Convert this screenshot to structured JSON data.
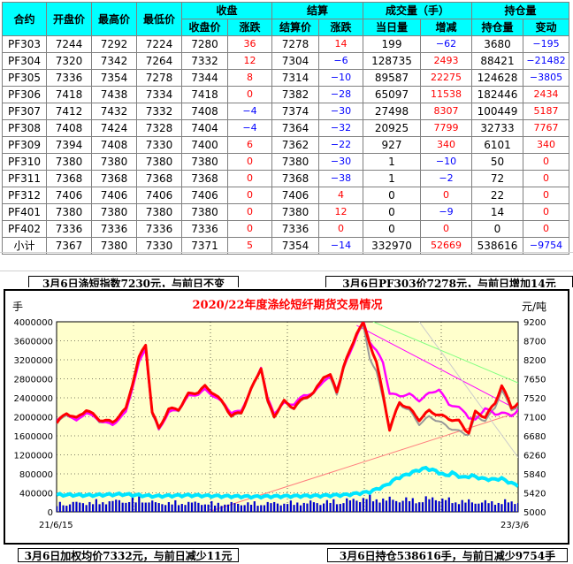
{
  "table": {
    "header_top": [
      "合约",
      "开盘价",
      "最高价",
      "最低价",
      "收盘",
      "结算",
      "成交量（手）",
      "持仓量"
    ],
    "header_sub": [
      "收盘价",
      "涨跌",
      "结算价",
      "涨跌",
      "当日量",
      "增减",
      "持仓量",
      "变动"
    ],
    "rows": [
      {
        "c": "PF303",
        "o": "7244",
        "h": "7292",
        "l": "7224",
        "cl": "7280",
        "cld": "36",
        "s": "7278",
        "sd": "14",
        "v": "199",
        "vd": "−62",
        "p": "3680",
        "pd": "−195"
      },
      {
        "c": "PF304",
        "o": "7320",
        "h": "7342",
        "l": "7264",
        "cl": "7332",
        "cld": "12",
        "s": "7304",
        "sd": "−6",
        "v": "128735",
        "vd": "2493",
        "p": "88421",
        "pd": "−21482"
      },
      {
        "c": "PF305",
        "o": "7336",
        "h": "7354",
        "l": "7278",
        "cl": "7344",
        "cld": "8",
        "s": "7314",
        "sd": "−10",
        "v": "89587",
        "vd": "22275",
        "p": "124628",
        "pd": "−3805"
      },
      {
        "c": "PF306",
        "o": "7418",
        "h": "7438",
        "l": "7334",
        "cl": "7418",
        "cld": "0",
        "s": "7382",
        "sd": "−28",
        "v": "65097",
        "vd": "11538",
        "p": "182446",
        "pd": "2434"
      },
      {
        "c": "PF307",
        "o": "7412",
        "h": "7432",
        "l": "7332",
        "cl": "7408",
        "cld": "−4",
        "s": "7374",
        "sd": "−30",
        "v": "27498",
        "vd": "8307",
        "p": "100449",
        "pd": "5187"
      },
      {
        "c": "PF308",
        "o": "7408",
        "h": "7424",
        "l": "7328",
        "cl": "7404",
        "cld": "−4",
        "s": "7364",
        "sd": "−32",
        "v": "20925",
        "vd": "7799",
        "p": "32733",
        "pd": "7767"
      },
      {
        "c": "PF309",
        "o": "7394",
        "h": "7408",
        "l": "7330",
        "cl": "7400",
        "cld": "6",
        "s": "7362",
        "sd": "−22",
        "v": "927",
        "vd": "340",
        "p": "6101",
        "pd": "340"
      },
      {
        "c": "PF310",
        "o": "7380",
        "h": "7380",
        "l": "7380",
        "cl": "7380",
        "cld": "0",
        "s": "7380",
        "sd": "−30",
        "v": "1",
        "vd": "−10",
        "p": "50",
        "pd": "0"
      },
      {
        "c": "PF311",
        "o": "7368",
        "h": "7368",
        "l": "7368",
        "cl": "7368",
        "cld": "0",
        "s": "7368",
        "sd": "−38",
        "v": "1",
        "vd": "−2",
        "p": "72",
        "pd": "0"
      },
      {
        "c": "PF312",
        "o": "7406",
        "h": "7406",
        "l": "7406",
        "cl": "7406",
        "cld": "0",
        "s": "7406",
        "sd": "4",
        "v": "0",
        "vd": "0",
        "p": "22",
        "pd": "0"
      },
      {
        "c": "PF401",
        "o": "7380",
        "h": "7380",
        "l": "7380",
        "cl": "7380",
        "cld": "0",
        "s": "7380",
        "sd": "12",
        "v": "0",
        "vd": "−9",
        "p": "14",
        "pd": "0"
      },
      {
        "c": "PF402",
        "o": "7336",
        "h": "7336",
        "l": "7336",
        "cl": "7336",
        "cld": "0",
        "s": "7336",
        "sd": "0",
        "v": "0",
        "vd": "0",
        "p": "0",
        "pd": "0"
      },
      {
        "c": "小计",
        "o": "7367",
        "h": "7380",
        "l": "7330",
        "cl": "7371",
        "cld": "5",
        "s": "7354",
        "sd": "−14",
        "v": "332970",
        "vd": "52669",
        "p": "538616",
        "pd": "−9754"
      }
    ]
  },
  "captions": {
    "top_left": "3月6日涤短指数7230元，与前日不变",
    "top_right": "3月6日PF303价7278元，与前日增加14元",
    "bottom_left": "3月6日加权均价7332元，与前日减少11元",
    "bottom_right": "3月6日持仓538616手，与前日减少9754手"
  },
  "colors": {
    "header_bg": "#00ffff",
    "up": "#ff0000",
    "down": "#0000ff",
    "chart_bg": "#ffffcc",
    "frame": "#000000",
    "title": "#ff0000",
    "price_line": "#ff0000",
    "magenta_line": "#ff00ff",
    "gray_line": "#999999",
    "volume_bar": "#0000cc",
    "oi_line": "#00e5ff"
  },
  "chart_data": {
    "type": "line",
    "title": "2020/22年度涤纶短纤期货交易情况",
    "ylabel_left": "手",
    "ylabel_right": "元/吨",
    "x_start_label": "21/6/15",
    "x_end_label": "23/3/6",
    "y_left_ticks": [
      "4000000",
      "3600000",
      "3200000",
      "2800000",
      "2400000",
      "2000000",
      "1600000",
      "1200000",
      "800000",
      "400000",
      "0"
    ],
    "y_left_lim": [
      0,
      4000000
    ],
    "y_right_ticks": [
      "9200",
      "8700",
      "8200",
      "7650",
      "7520",
      "7100",
      "6680",
      "6260",
      "5840",
      "5420",
      "5000"
    ],
    "y_right_lim": [
      5000,
      9200
    ],
    "n": 140,
    "series": [
      {
        "name": "",
        "role": "price",
        "axis": "right",
        "anchors": [
          [
            0,
            6960
          ],
          [
            3,
            7190
          ],
          [
            6,
            7060
          ],
          [
            9,
            7260
          ],
          [
            13,
            7040
          ],
          [
            17,
            6980
          ],
          [
            21,
            7270
          ],
          [
            25,
            8400
          ],
          [
            27,
            8700
          ],
          [
            29,
            7200
          ],
          [
            31,
            6840
          ],
          [
            34,
            7270
          ],
          [
            37,
            7270
          ],
          [
            40,
            7600
          ],
          [
            43,
            7650
          ],
          [
            45,
            7770
          ],
          [
            48,
            7600
          ],
          [
            51,
            7360
          ],
          [
            53,
            7120
          ],
          [
            56,
            7200
          ],
          [
            59,
            7700
          ],
          [
            62,
            8190
          ],
          [
            64,
            7440
          ],
          [
            66,
            7120
          ],
          [
            69,
            7440
          ],
          [
            72,
            7300
          ],
          [
            75,
            7520
          ],
          [
            78,
            7620
          ],
          [
            81,
            8000
          ],
          [
            83,
            8010
          ],
          [
            85,
            7660
          ],
          [
            87,
            8200
          ],
          [
            89,
            8560
          ],
          [
            91,
            8960
          ],
          [
            93,
            9160
          ],
          [
            95,
            8720
          ],
          [
            97,
            8300
          ],
          [
            99,
            7600
          ],
          [
            101,
            6820
          ],
          [
            104,
            7420
          ],
          [
            107,
            7280
          ],
          [
            110,
            7040
          ],
          [
            113,
            7230
          ],
          [
            116,
            7140
          ],
          [
            119,
            7060
          ],
          [
            122,
            7000
          ],
          [
            124,
            6820
          ],
          [
            125,
            6760
          ],
          [
            127,
            7200
          ],
          [
            130,
            7100
          ],
          [
            133,
            7400
          ],
          [
            135,
            7800
          ],
          [
            138,
            7300
          ],
          [
            140,
            7410
          ]
        ]
      },
      {
        "name": "",
        "role": "magenta",
        "axis": "right",
        "anchors": [
          [
            0,
            7000
          ],
          [
            3,
            7180
          ],
          [
            6,
            7000
          ],
          [
            9,
            7200
          ],
          [
            13,
            7020
          ],
          [
            17,
            6920
          ],
          [
            21,
            7200
          ],
          [
            25,
            8300
          ],
          [
            27,
            8600
          ],
          [
            29,
            7200
          ],
          [
            31,
            6820
          ],
          [
            34,
            7200
          ],
          [
            37,
            7260
          ],
          [
            40,
            7560
          ],
          [
            43,
            7600
          ],
          [
            45,
            7700
          ],
          [
            48,
            7540
          ],
          [
            51,
            7380
          ],
          [
            53,
            7180
          ],
          [
            56,
            7240
          ],
          [
            59,
            7700
          ],
          [
            62,
            8200
          ],
          [
            64,
            7500
          ],
          [
            66,
            7180
          ],
          [
            69,
            7400
          ],
          [
            72,
            7380
          ],
          [
            75,
            7580
          ],
          [
            78,
            7620
          ],
          [
            81,
            7900
          ],
          [
            83,
            7980
          ],
          [
            85,
            7700
          ],
          [
            87,
            8180
          ],
          [
            89,
            8500
          ],
          [
            91,
            8900
          ],
          [
            93,
            9200
          ],
          [
            95,
            8760
          ],
          [
            97,
            8560
          ],
          [
            99,
            8300
          ],
          [
            101,
            7620
          ],
          [
            104,
            7560
          ],
          [
            107,
            7600
          ],
          [
            110,
            7460
          ],
          [
            113,
            7620
          ],
          [
            116,
            7700
          ],
          [
            119,
            7380
          ],
          [
            122,
            7300
          ],
          [
            124,
            7200
          ],
          [
            125,
            7080
          ],
          [
            127,
            7020
          ],
          [
            130,
            7300
          ],
          [
            133,
            7150
          ],
          [
            135,
            7200
          ],
          [
            138,
            7120
          ],
          [
            140,
            7260
          ]
        ]
      },
      {
        "name": "",
        "role": "gray",
        "axis": "right",
        "anchors": [
          [
            0,
            6940
          ],
          [
            3,
            7150
          ],
          [
            6,
            7040
          ],
          [
            9,
            7230
          ],
          [
            13,
            7000
          ],
          [
            17,
            6960
          ],
          [
            21,
            7240
          ],
          [
            25,
            8350
          ],
          [
            27,
            8650
          ],
          [
            29,
            7160
          ],
          [
            31,
            6800
          ],
          [
            34,
            7240
          ],
          [
            37,
            7240
          ],
          [
            40,
            7580
          ],
          [
            43,
            7620
          ],
          [
            45,
            7740
          ],
          [
            48,
            7580
          ],
          [
            51,
            7330
          ],
          [
            53,
            7100
          ],
          [
            56,
            7180
          ],
          [
            59,
            7680
          ],
          [
            62,
            8160
          ],
          [
            64,
            7400
          ],
          [
            66,
            7100
          ],
          [
            69,
            7420
          ],
          [
            72,
            7280
          ],
          [
            75,
            7500
          ],
          [
            78,
            7600
          ],
          [
            81,
            7960
          ],
          [
            83,
            7940
          ],
          [
            85,
            7600
          ],
          [
            87,
            8150
          ],
          [
            89,
            8520
          ],
          [
            91,
            8940
          ],
          [
            93,
            9100
          ],
          [
            95,
            8400
          ],
          [
            97,
            8100
          ],
          [
            99,
            7500
          ],
          [
            101,
            6880
          ],
          [
            104,
            7380
          ],
          [
            107,
            7240
          ],
          [
            110,
            6940
          ],
          [
            113,
            7100
          ],
          [
            116,
            7000
          ],
          [
            119,
            6860
          ],
          [
            122,
            6780
          ],
          [
            124,
            6720
          ],
          [
            125,
            6720
          ],
          [
            127,
            7100
          ],
          [
            130,
            7020
          ],
          [
            133,
            7300
          ],
          [
            135,
            7700
          ],
          [
            138,
            7250
          ],
          [
            140,
            7360
          ]
        ]
      },
      {
        "name": "",
        "role": "open_interest",
        "axis": "left",
        "anchors": [
          [
            0,
            360000
          ],
          [
            10,
            350000
          ],
          [
            20,
            370000
          ],
          [
            30,
            330000
          ],
          [
            40,
            350000
          ],
          [
            50,
            330000
          ],
          [
            60,
            320000
          ],
          [
            70,
            330000
          ],
          [
            80,
            340000
          ],
          [
            88,
            360000
          ],
          [
            95,
            420000
          ],
          [
            100,
            560000
          ],
          [
            103,
            700000
          ],
          [
            106,
            780000
          ],
          [
            109,
            860000
          ],
          [
            112,
            920000
          ],
          [
            115,
            860000
          ],
          [
            118,
            760000
          ],
          [
            120,
            820000
          ],
          [
            123,
            720000
          ],
          [
            126,
            760000
          ],
          [
            129,
            700000
          ],
          [
            132,
            680000
          ],
          [
            135,
            700000
          ],
          [
            138,
            600000
          ],
          [
            140,
            560000
          ]
        ]
      },
      {
        "name": "",
        "role": "volume",
        "axis": "left",
        "kind": "bars",
        "anchors": [
          [
            0,
            220000
          ],
          [
            10,
            260000
          ],
          [
            20,
            300000
          ],
          [
            25,
            360000
          ],
          [
            30,
            240000
          ],
          [
            40,
            250000
          ],
          [
            50,
            220000
          ],
          [
            60,
            230000
          ],
          [
            70,
            240000
          ],
          [
            80,
            260000
          ],
          [
            90,
            320000
          ],
          [
            93,
            380000
          ],
          [
            100,
            340000
          ],
          [
            110,
            320000
          ],
          [
            115,
            380000
          ],
          [
            120,
            300000
          ],
          [
            130,
            260000
          ],
          [
            140,
            280000
          ]
        ]
      }
    ],
    "trendlines": [
      {
        "color": "#ff00ff",
        "from": [
          91,
          9120
        ],
        "to": [
          140,
          7250
        ]
      },
      {
        "color": "#ff7f7f",
        "from": [
          46,
          5000
        ],
        "to": [
          140,
          7200
        ]
      },
      {
        "color": "#80ff80",
        "from": [
          96,
          9200
        ],
        "to": [
          140,
          7850
        ]
      },
      {
        "color": "#cccccc",
        "from": [
          110,
          9200
        ],
        "to": [
          140,
          6200
        ]
      }
    ],
    "grid": true
  }
}
